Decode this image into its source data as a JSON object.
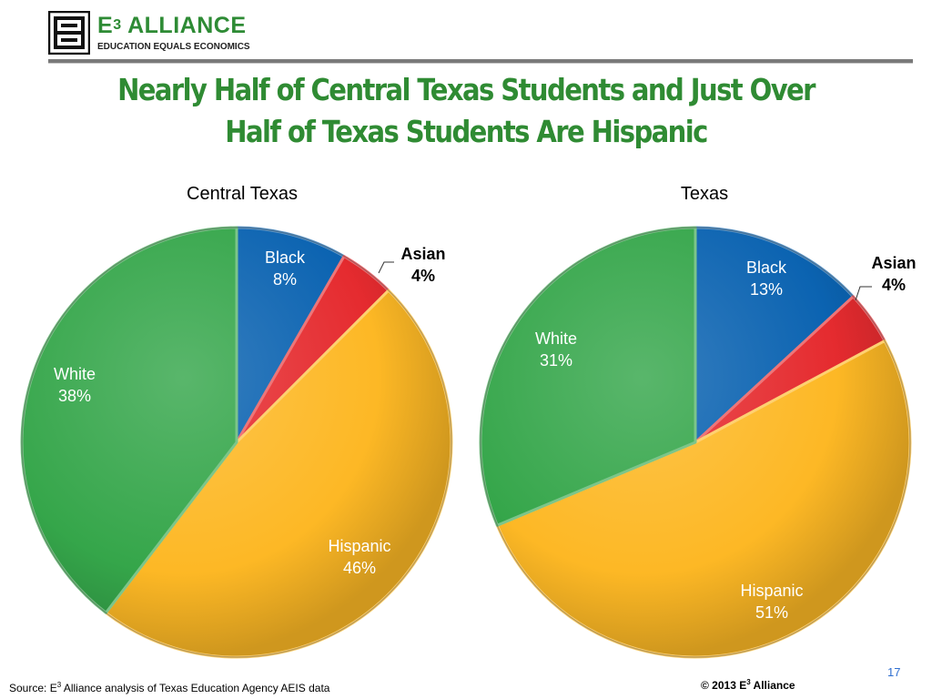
{
  "logo": {
    "name_prefix": "E",
    "name_superscript": "3",
    "name_suffix": " ALLIANCE",
    "tagline": "EDUCATION EQUALS ECONOMICS"
  },
  "slide": {
    "title_line1": "Nearly Half of Central Texas Students and Just Over",
    "title_line2": "Half of Texas Students Are Hispanic",
    "source_prefix": "Source: E",
    "source_superscript": "3",
    "source_suffix": " Alliance analysis of Texas Education Agency AEIS data",
    "copyright_prefix": "© 2013 E",
    "copyright_superscript": "3",
    "copyright_suffix": " Alliance",
    "page_number": "17"
  },
  "colors": {
    "brand_green": "#2f8b33",
    "Black": "#0b63b1",
    "Asian": "#e52b2f",
    "Hispanic": "#fdb825",
    "White": "#35a64a"
  },
  "chart_data": [
    {
      "type": "pie",
      "title": "Central Texas",
      "start": "12 o'clock, clockwise",
      "slices": [
        {
          "label": "Black",
          "value": 8,
          "display": "8%"
        },
        {
          "label": "Asian",
          "value": 4,
          "display": "4%"
        },
        {
          "label": "Hispanic",
          "value": 46,
          "display": "46%"
        },
        {
          "label": "White",
          "value": 38,
          "display": "38%"
        }
      ]
    },
    {
      "type": "pie",
      "title": "Texas",
      "start": "12 o'clock, clockwise",
      "slices": [
        {
          "label": "Black",
          "value": 13,
          "display": "13%"
        },
        {
          "label": "Asian",
          "value": 4,
          "display": "4%"
        },
        {
          "label": "Hispanic",
          "value": 51,
          "display": "51%"
        },
        {
          "label": "White",
          "value": 31,
          "display": "31%"
        }
      ]
    }
  ]
}
